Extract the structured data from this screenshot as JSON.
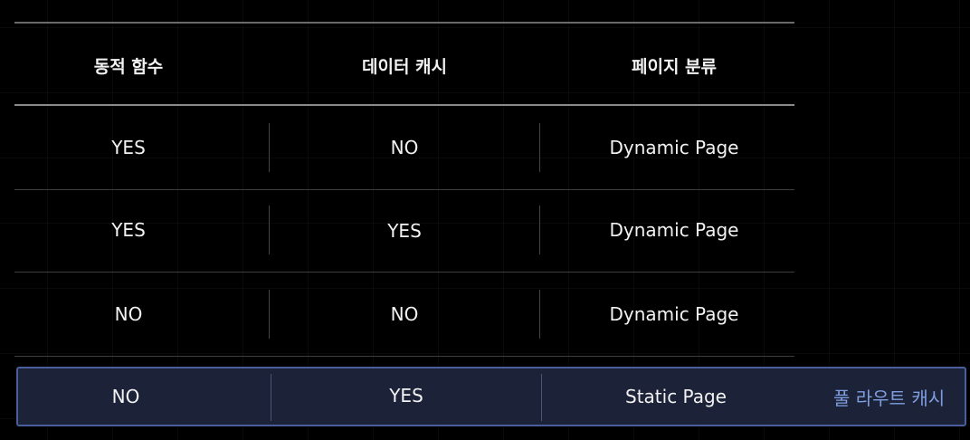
{
  "table": {
    "headers": [
      "동적 함수",
      "데이터 캐시",
      "페이지 분류"
    ],
    "rows": [
      [
        "YES",
        "NO",
        "Dynamic Page"
      ],
      [
        "YES",
        "YES",
        "Dynamic Page"
      ],
      [
        "NO",
        "NO",
        "Dynamic Page"
      ]
    ],
    "highlighted_row": {
      "cells": [
        "NO",
        "YES",
        "Static Page"
      ],
      "tag": "풀 라우트 캐시"
    }
  },
  "colors": {
    "background": "#000000",
    "text": "#f2f2f2",
    "highlight_fill": "#1c2238",
    "highlight_border": "#4a5e9c",
    "tag_text": "#7f9ee0"
  }
}
